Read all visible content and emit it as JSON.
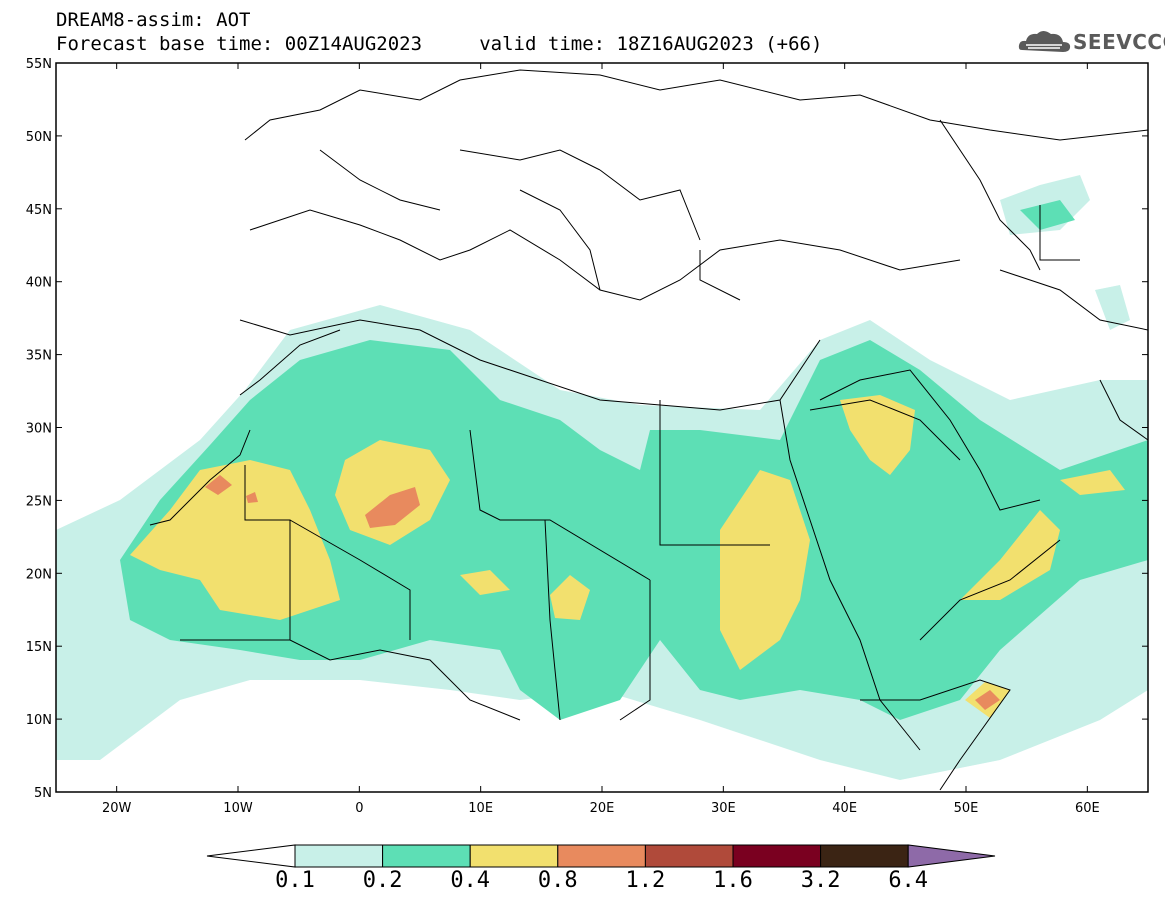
{
  "header": {
    "title_line1": "DREAM8-assim: AOT",
    "title_line2": "Forecast base time: 00Z14AUG2023     valid time: 18Z16AUG2023 (+66)",
    "logo_text": "SEEVCCC",
    "logo_icon": "cloud-logo-icon"
  },
  "map": {
    "lon_ticks": [
      {
        "value": -20,
        "label": "20W"
      },
      {
        "value": -10,
        "label": "10W"
      },
      {
        "value": 0,
        "label": "0"
      },
      {
        "value": 10,
        "label": "10E"
      },
      {
        "value": 20,
        "label": "20E"
      },
      {
        "value": 30,
        "label": "30E"
      },
      {
        "value": 40,
        "label": "40E"
      },
      {
        "value": 50,
        "label": "50E"
      },
      {
        "value": 60,
        "label": "60E"
      }
    ],
    "lat_ticks": [
      {
        "value": 55,
        "label": "55N"
      },
      {
        "value": 50,
        "label": "50N"
      },
      {
        "value": 45,
        "label": "45N"
      },
      {
        "value": 40,
        "label": "40N"
      },
      {
        "value": 35,
        "label": "35N"
      },
      {
        "value": 30,
        "label": "30N"
      },
      {
        "value": 25,
        "label": "25N"
      },
      {
        "value": 20,
        "label": "20N"
      },
      {
        "value": 15,
        "label": "15N"
      },
      {
        "value": 10,
        "label": "10N"
      },
      {
        "value": 5,
        "label": "5N"
      }
    ],
    "lon_range": [
      -25,
      65
    ],
    "lat_range": [
      5,
      55
    ]
  },
  "colorbar": {
    "labels": [
      "0.1",
      "0.2",
      "0.4",
      "0.8",
      "1.2",
      "1.6",
      "3.2",
      "6.4"
    ],
    "colors": [
      "#c8f0e8",
      "#5ddfb5",
      "#f2e06e",
      "#e88a5e",
      "#b04a3a",
      "#7a0020",
      "#3b2414"
    ],
    "under_color": "#ffffff",
    "over_color": "#8e6aa8"
  }
}
